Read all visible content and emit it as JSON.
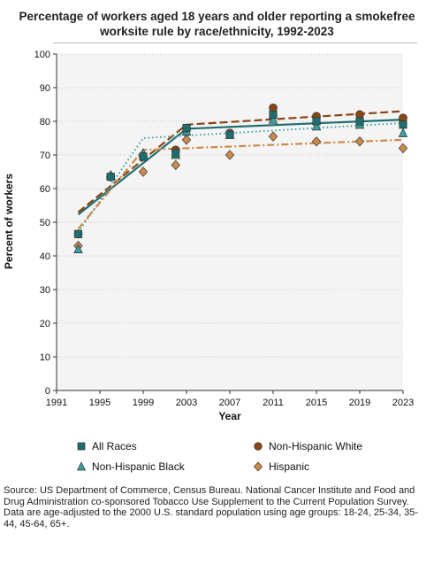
{
  "chart_data": {
    "type": "scatter",
    "title": "Percentage of workers aged 18 years and older reporting a smokefree worksite rule by race/ethnicity, 1992-2023",
    "xlabel": "Year",
    "ylabel": "Percent of workers",
    "xlim": [
      1991,
      2023
    ],
    "ylim": [
      0,
      100
    ],
    "xticks": [
      1991,
      1995,
      1999,
      2003,
      2007,
      2011,
      2015,
      2019,
      2023
    ],
    "yticks": [
      0,
      10,
      20,
      30,
      40,
      50,
      60,
      70,
      80,
      90,
      100
    ],
    "grid": "horizontal dotted",
    "legend_position": "bottom",
    "series": [
      {
        "name": "All Races",
        "marker": "square",
        "color": "#1f6e6e",
        "points": [
          [
            1993,
            46.5
          ],
          [
            1996,
            63.5
          ],
          [
            1999,
            69.5
          ],
          [
            2002,
            70.5
          ],
          [
            2003,
            78.0
          ],
          [
            2007,
            76.0
          ],
          [
            2011,
            82.0
          ],
          [
            2015,
            80.0
          ],
          [
            2019,
            80.0
          ],
          [
            2023,
            79.0
          ]
        ],
        "trend": [
          [
            1993,
            52.3
          ],
          [
            2003,
            77.8
          ],
          [
            2023,
            80.5
          ]
        ],
        "trend_style": "solid"
      },
      {
        "name": "Non-Hispanic White",
        "marker": "circle",
        "color": "#8b4513",
        "points": [
          [
            1993,
            46.5
          ],
          [
            1996,
            63.5
          ],
          [
            1999,
            69.5
          ],
          [
            2002,
            71.5
          ],
          [
            2003,
            78.0
          ],
          [
            2007,
            76.5
          ],
          [
            2011,
            84.0
          ],
          [
            2015,
            81.5
          ],
          [
            2019,
            82.0
          ],
          [
            2023,
            81.0
          ]
        ],
        "trend": [
          [
            1993,
            53.0
          ],
          [
            2003,
            79.0
          ],
          [
            2023,
            83.0
          ]
        ],
        "trend_style": "dashed"
      },
      {
        "name": "Non-Hispanic Black",
        "marker": "triangle",
        "color": "#3a9e9e",
        "points": [
          [
            1993,
            42.0
          ],
          [
            1996,
            64.0
          ],
          [
            1999,
            70.5
          ],
          [
            2002,
            70.0
          ],
          [
            2003,
            77.0
          ],
          [
            2007,
            76.0
          ],
          [
            2011,
            80.5
          ],
          [
            2015,
            78.5
          ],
          [
            2019,
            79.0
          ],
          [
            2023,
            76.5
          ]
        ],
        "trend": [
          [
            1993,
            47.0
          ],
          [
            1999,
            75.0
          ],
          [
            2023,
            79.5
          ]
        ],
        "trend_style": "dotted"
      },
      {
        "name": "Hispanic",
        "marker": "diamond",
        "color": "#cc8b4a",
        "points": [
          [
            1993,
            43.0
          ],
          [
            1996,
            63.5
          ],
          [
            1999,
            65.0
          ],
          [
            2002,
            67.0
          ],
          [
            2003,
            74.5
          ],
          [
            2007,
            70.0
          ],
          [
            2011,
            75.5
          ],
          [
            2015,
            74.0
          ],
          [
            2019,
            74.0
          ],
          [
            2023,
            72.0
          ]
        ],
        "trend": [
          [
            1993,
            48.0
          ],
          [
            1999,
            71.5
          ],
          [
            2023,
            74.5
          ]
        ],
        "trend_style": "dashdot"
      }
    ]
  },
  "footnote": {
    "source": "Source: US Department of Commerce, Census Bureau. National Cancer Institute and Food and Drug Administration co-sponsored Tobacco Use Supplement to the Current Population Survey.",
    "note": "Data are age-adjusted to the 2000 U.S. standard population using age groups: 18-24, 25-34, 35-44, 45-64, 65+."
  }
}
